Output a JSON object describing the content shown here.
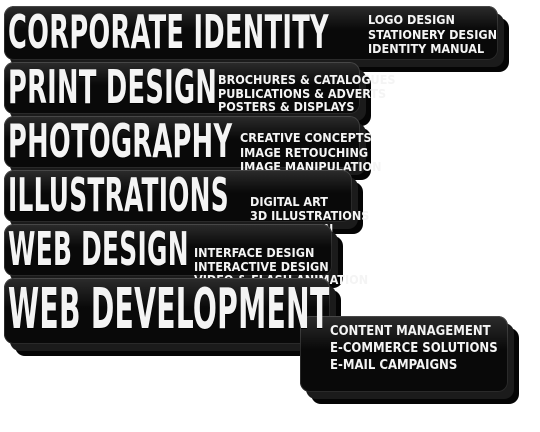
{
  "services": [
    {
      "title": "CORPORATE IDENTITY",
      "details": [
        "LOGO DESIGN",
        "STATIONERY DESIGN",
        "IDENTITY MANUAL"
      ]
    },
    {
      "title": "PRINT DESIGN",
      "details": [
        "BROCHURES & CATALOGUES",
        "PUBLICATIONS & ADVERTS",
        "POSTERS & DISPLAYS"
      ]
    },
    {
      "title": "PHOTOGRAPHY",
      "details": [
        "CREATIVE CONCEPTS",
        "IMAGE RETOUCHING",
        "IMAGE MANIPULATION"
      ]
    },
    {
      "title": "ILLUSTRATIONS",
      "details": [
        "DIGITAL ART",
        "3D ILLUSTRATIONS",
        "ICON DESIGN"
      ]
    },
    {
      "title": "WEB DESIGN",
      "details": [
        "INTERFACE DESIGN",
        "INTERACTIVE DESIGN",
        "VIDEO & FLASH ANIMATION"
      ]
    },
    {
      "title": "WEB DEVELOPMENT",
      "details": [
        "CONTENT MANAGEMENT",
        "E-COMMERCE SOLUTIONS",
        "E-MAIL CAMPAIGNS"
      ]
    }
  ]
}
